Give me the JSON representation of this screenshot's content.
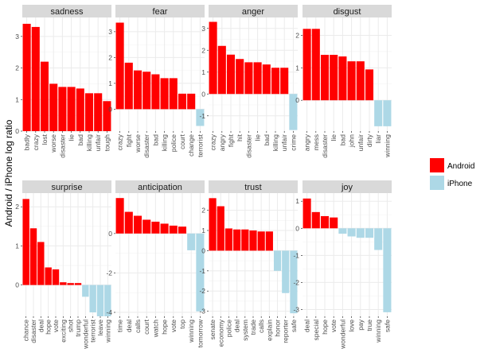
{
  "chart_data": {
    "type": "bar",
    "ylabel": "Android / iPhone log ratio",
    "legend": {
      "position": "right",
      "entries": [
        {
          "label": "Android",
          "color": "#ff0000"
        },
        {
          "label": "iPhone",
          "color": "#add8e6"
        }
      ]
    },
    "grid": true,
    "colors": {
      "Android": "#ff0000",
      "iPhone": "#add8e6",
      "panel_bg": "#ffffff",
      "grid": "#ebebeb",
      "strip_bg": "#d9d9d9"
    },
    "panels": [
      {
        "title": "sadness",
        "ylim": [
          0,
          3.6
        ],
        "yticks": [
          0,
          1,
          2,
          3
        ],
        "categories": [
          "badly",
          "crazy",
          "lost",
          "worse",
          "disaster",
          "lie",
          "bad",
          "killing",
          "unfair",
          "tough"
        ],
        "values": [
          3.4,
          3.3,
          2.2,
          1.5,
          1.4,
          1.4,
          1.35,
          1.2,
          1.2,
          0.95
        ]
      },
      {
        "title": "fear",
        "ylim": [
          -0.85,
          3.55
        ],
        "yticks": [
          0,
          1,
          2,
          3
        ],
        "categories": [
          "crazy",
          "fight",
          "worse",
          "disaster",
          "bad",
          "killing",
          "police",
          "court",
          "change",
          "terrorist"
        ],
        "values": [
          3.35,
          1.8,
          1.5,
          1.45,
          1.35,
          1.2,
          1.2,
          0.6,
          0.6,
          -0.65
        ]
      },
      {
        "title": "anger",
        "ylim": [
          -1.7,
          3.5
        ],
        "yticks": [
          -1,
          0,
          1,
          2,
          3
        ],
        "categories": [
          "crazy",
          "angry",
          "fight",
          "hit",
          "disaster",
          "lie",
          "bad",
          "killing",
          "unfair",
          "crime"
        ],
        "values": [
          3.3,
          2.2,
          1.8,
          1.6,
          1.45,
          1.45,
          1.35,
          1.2,
          1.2,
          -1.65
        ]
      },
      {
        "title": "disgust",
        "ylim": [
          -0.95,
          2.55
        ],
        "yticks": [
          0,
          1,
          2
        ],
        "categories": [
          "angry",
          "mess",
          "disaster",
          "lie",
          "bad",
          "john",
          "unfair",
          "dirty",
          "liar",
          "winning"
        ],
        "values": [
          2.2,
          2.2,
          1.4,
          1.4,
          1.35,
          1.2,
          1.2,
          0.95,
          -0.8,
          -0.8
        ]
      },
      {
        "title": "surprise",
        "ylim": [
          -0.8,
          2.35
        ],
        "yticks": [
          0,
          1,
          2
        ],
        "categories": [
          "chance",
          "disaster",
          "deal",
          "hope",
          "vote",
          "exciting",
          "shot",
          "trump",
          "wonderful",
          "terrorist",
          "leave",
          "winning"
        ],
        "values": [
          2.2,
          1.45,
          1.1,
          0.45,
          0.4,
          0.07,
          0.05,
          0.05,
          -0.3,
          -0.7,
          -0.8,
          -0.8
        ]
      },
      {
        "title": "anticipation",
        "ylim": [
          -4.2,
          2.05
        ],
        "yticks": [
          -4,
          -2,
          0
        ],
        "categories": [
          "time",
          "deal",
          "calls",
          "court",
          "watch",
          "hope",
          "vote",
          "top",
          "winning",
          "tomorrow"
        ],
        "values": [
          1.8,
          1.1,
          0.9,
          0.7,
          0.6,
          0.5,
          0.4,
          0.35,
          -0.85,
          -3.95
        ]
      },
      {
        "title": "trust",
        "ylim": [
          -3.25,
          2.85
        ],
        "yticks": [
          -3,
          -2,
          -1,
          0,
          1,
          2
        ],
        "categories": [
          "senate",
          "economy",
          "police",
          "deal",
          "system",
          "trade",
          "calls",
          "explain",
          "honor",
          "reporter",
          "safe"
        ],
        "values": [
          2.6,
          2.2,
          1.1,
          1.05,
          1.05,
          1.0,
          0.95,
          0.95,
          -1.0,
          -2.1,
          -3.1
        ]
      },
      {
        "title": "joy",
        "ylim": [
          -3.25,
          1.3
        ],
        "yticks": [
          -3,
          -2,
          -1,
          0,
          1
        ],
        "categories": [
          "deal",
          "special",
          "hope",
          "vote",
          "wonderful",
          "love",
          "pay",
          "true",
          "winning",
          "safe"
        ],
        "values": [
          1.1,
          0.6,
          0.45,
          0.4,
          -0.2,
          -0.3,
          -0.35,
          -0.35,
          -0.8,
          -3.1
        ]
      }
    ]
  }
}
